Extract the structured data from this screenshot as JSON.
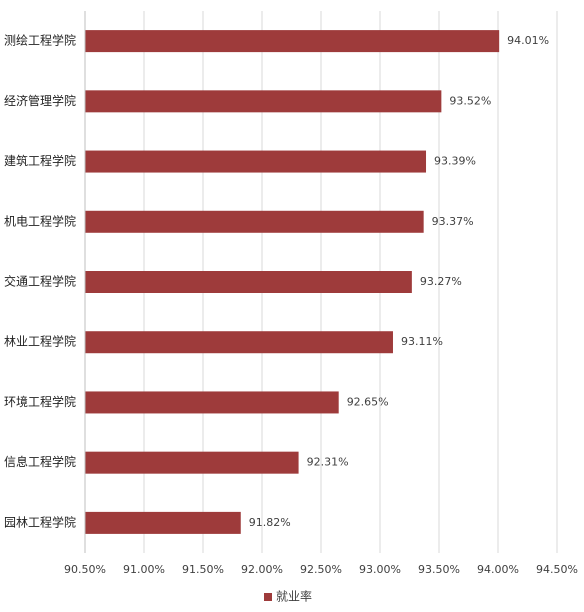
{
  "chart_data": {
    "type": "barh",
    "categories": [
      "测绘工程学院",
      "经济管理学院",
      "建筑工程学院",
      "机电工程学院",
      "交通工程学院",
      "林业工程学院",
      "环境工程学院",
      "信息工程学院",
      "园林工程学院"
    ],
    "series": [
      {
        "name": "就业率",
        "color": "#9e3b3b",
        "values": [
          94.01,
          93.52,
          93.39,
          93.37,
          93.27,
          93.11,
          92.65,
          92.31,
          91.82
        ],
        "value_labels": [
          "94.01%",
          "93.52%",
          "93.39%",
          "93.37%",
          "93.27%",
          "93.11%",
          "92.65%",
          "92.31%",
          "91.82%"
        ]
      }
    ],
    "xlim": [
      90.5,
      94.5
    ],
    "xticks": [
      {
        "value": 90.5,
        "label": "90.50%"
      },
      {
        "value": 91,
        "label": "91.00%"
      },
      {
        "value": 91.5,
        "label": "91.50%"
      },
      {
        "value": 92,
        "label": "92.00%"
      },
      {
        "value": 92.5,
        "label": "92.50%"
      },
      {
        "value": 93,
        "label": "93.00%"
      },
      {
        "value": 93.5,
        "label": "93.50%"
      },
      {
        "value": 94,
        "label": "94.00%"
      },
      {
        "value": 94.5,
        "label": "94.50%"
      }
    ],
    "grid": true,
    "legend": "bottom"
  }
}
